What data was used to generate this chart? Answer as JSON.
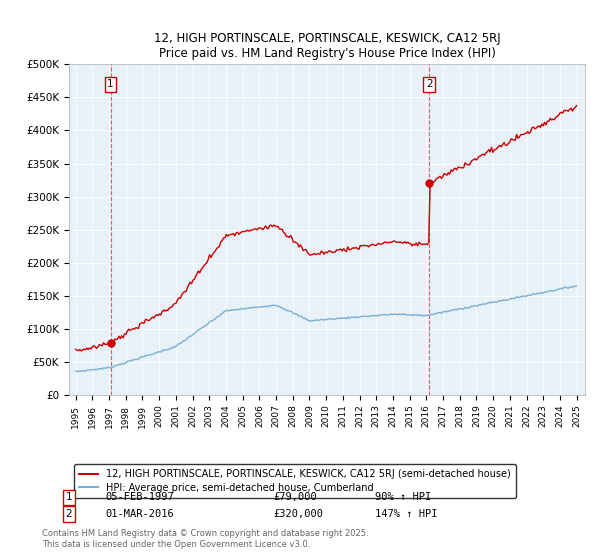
{
  "title": "12, HIGH PORTINSCALE, PORTINSCALE, KESWICK, CA12 5RJ",
  "subtitle": "Price paid vs. HM Land Registry's House Price Index (HPI)",
  "ylim": [
    0,
    500000
  ],
  "yticks": [
    0,
    50000,
    100000,
    150000,
    200000,
    250000,
    300000,
    350000,
    400000,
    450000,
    500000
  ],
  "ytick_labels": [
    "£0",
    "£50K",
    "£100K",
    "£150K",
    "£200K",
    "£250K",
    "£300K",
    "£350K",
    "£400K",
    "£450K",
    "£500K"
  ],
  "xlim_start": 1994.6,
  "xlim_end": 2025.5,
  "sale1_date": 1997.09,
  "sale1_price": 79000,
  "sale1_label": "05-FEB-1997",
  "sale1_amount": "£79,000",
  "sale1_hpi": "90% ↑ HPI",
  "sale2_date": 2016.17,
  "sale2_price": 320000,
  "sale2_label": "01-MAR-2016",
  "sale2_amount": "£320,000",
  "sale2_hpi": "147% ↑ HPI",
  "legend_line1": "12, HIGH PORTINSCALE, PORTINSCALE, KESWICK, CA12 5RJ (semi-detached house)",
  "legend_line2": "HPI: Average price, semi-detached house, Cumberland",
  "footnote": "Contains HM Land Registry data © Crown copyright and database right 2025.\nThis data is licensed under the Open Government Licence v3.0.",
  "property_color": "#cc0000",
  "hpi_color": "#7aafd4",
  "plot_bg": "#e8f0f8"
}
